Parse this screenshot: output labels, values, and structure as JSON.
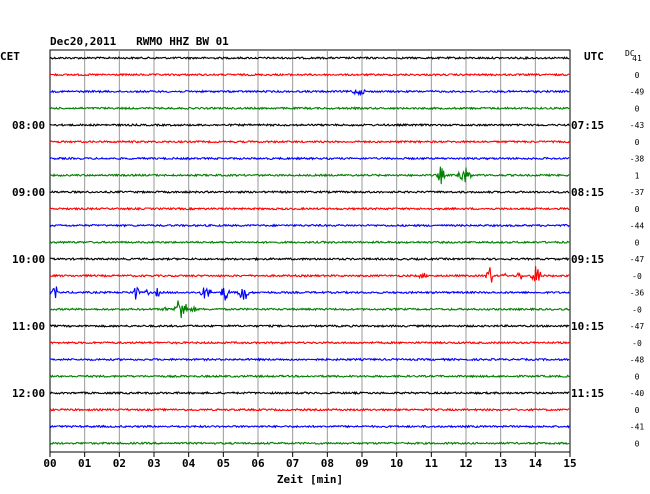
{
  "header": {
    "title": "Dec20,2011   RWMO HHZ BW 01",
    "left_tz": "CET",
    "right_tz": "UTC",
    "dc_label": "DC"
  },
  "chart_data": {
    "type": "line",
    "title": "Dec20,2011   RWMO HHZ BW 01",
    "xlabel": "Zeit [min]",
    "x_ticks": [
      "00",
      "01",
      "02",
      "03",
      "04",
      "05",
      "06",
      "07",
      "08",
      "09",
      "10",
      "11",
      "12",
      "13",
      "14",
      "15"
    ],
    "xlim": [
      0,
      15
    ],
    "grid": true,
    "trace_colors": [
      "#000000",
      "#ff0000",
      "#0000ff",
      "#008000"
    ],
    "trace_count": 24,
    "left_hour_labels": [
      {
        "trace": 4,
        "text": "08:00"
      },
      {
        "trace": 8,
        "text": "09:00"
      },
      {
        "trace": 12,
        "text": "10:00"
      },
      {
        "trace": 16,
        "text": "11:00"
      },
      {
        "trace": 20,
        "text": "12:00"
      }
    ],
    "right_hour_labels": [
      {
        "trace": 4,
        "text": "07:15"
      },
      {
        "trace": 8,
        "text": "08:15"
      },
      {
        "trace": 12,
        "text": "09:15"
      },
      {
        "trace": 16,
        "text": "10:15"
      },
      {
        "trace": 20,
        "text": "11:15"
      }
    ],
    "dc_offsets": [
      "41",
      "0",
      "-49",
      "0",
      "-43",
      "0",
      "-38",
      "1",
      "-37",
      "0",
      "-44",
      "0",
      "-47",
      "-0",
      "-36",
      "-0",
      "-47",
      "-0",
      "-48",
      "0",
      "-40",
      "0",
      "-41",
      "0"
    ],
    "events": [
      {
        "trace": 2,
        "start_min": 8.6,
        "end_min": 9.2,
        "amp": 0.35
      },
      {
        "trace": 7,
        "start_min": 11.15,
        "end_min": 11.4,
        "amp": 1.0
      },
      {
        "trace": 7,
        "start_min": 11.7,
        "end_min": 12.2,
        "amp": 0.9
      },
      {
        "trace": 13,
        "start_min": 10.6,
        "end_min": 10.9,
        "amp": 0.35
      },
      {
        "trace": 13,
        "start_min": 12.55,
        "end_min": 12.8,
        "amp": 1.1
      },
      {
        "trace": 13,
        "start_min": 13.0,
        "end_min": 13.2,
        "amp": 0.3
      },
      {
        "trace": 13,
        "start_min": 13.45,
        "end_min": 13.65,
        "amp": 0.6
      },
      {
        "trace": 13,
        "start_min": 13.85,
        "end_min": 14.2,
        "amp": 1.1
      },
      {
        "trace": 14,
        "start_min": 0.05,
        "end_min": 0.25,
        "amp": 0.8
      },
      {
        "trace": 14,
        "start_min": 2.3,
        "end_min": 2.6,
        "amp": 0.8
      },
      {
        "trace": 14,
        "start_min": 2.7,
        "end_min": 2.9,
        "amp": 0.3
      },
      {
        "trace": 14,
        "start_min": 3.0,
        "end_min": 3.2,
        "amp": 0.5
      },
      {
        "trace": 14,
        "start_min": 4.3,
        "end_min": 4.7,
        "amp": 0.7
      },
      {
        "trace": 14,
        "start_min": 4.9,
        "end_min": 5.2,
        "amp": 0.9
      },
      {
        "trace": 14,
        "start_min": 5.4,
        "end_min": 5.75,
        "amp": 1.1
      },
      {
        "trace": 15,
        "start_min": 3.2,
        "end_min": 3.5,
        "amp": 0.25
      },
      {
        "trace": 15,
        "start_min": 3.55,
        "end_min": 4.0,
        "amp": 1.4
      },
      {
        "trace": 15,
        "start_min": 4.0,
        "end_min": 4.3,
        "amp": 0.3
      }
    ]
  }
}
